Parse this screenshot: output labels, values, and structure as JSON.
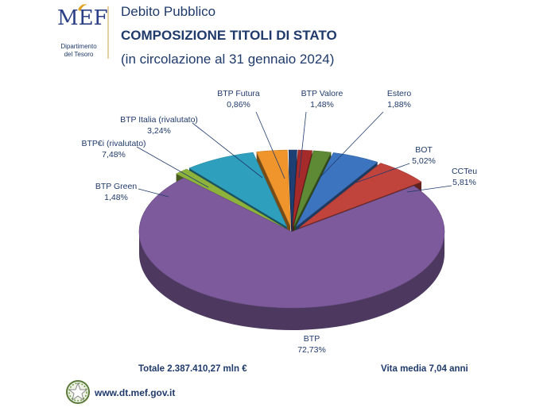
{
  "header": {
    "logo_text": "MEF",
    "dept_line1": "Dipartimento",
    "dept_line2": "del Tesoro",
    "subtitle": "Debito Pubblico",
    "title": "COMPOSIZIONE TITOLI DI STATO",
    "date_note": "(in circolazione al 31 gennaio 2024)"
  },
  "chart_data": {
    "type": "pie",
    "title": "COMPOSIZIONE TITOLI DI STATO",
    "subtitle": "(in circolazione al 31 gennaio 2024)",
    "slices": [
      {
        "label": "BTP",
        "value_text": "72,73%",
        "value": 72.73,
        "color": "#7c5a9b"
      },
      {
        "label": "BTP Green",
        "value_text": "1,48%",
        "value": 1.48,
        "color": "#8db33c"
      },
      {
        "label": "BTP€i (rivalutato)",
        "value_text": "7,48%",
        "value": 7.48,
        "color": "#2e9fbd"
      },
      {
        "label": "BTP Italia (rivalutato)",
        "value_text": "3,24%",
        "value": 3.24,
        "color": "#f0952b"
      },
      {
        "label": "BTP Futura",
        "value_text": "0,86%",
        "value": 0.86,
        "color": "#1d3f73"
      },
      {
        "label": "BTP Valore",
        "value_text": "1,48%",
        "value": 1.48,
        "color": "#a52a2a"
      },
      {
        "label": "Estero",
        "value_text": "1,88%",
        "value": 1.88,
        "color": "#5e8a35"
      },
      {
        "label": "BOT",
        "value_text": "5,02%",
        "value": 5.02,
        "color": "#3d74c0"
      },
      {
        "label": "CCTeu",
        "value_text": "5,81%",
        "value": 5.81,
        "color": "#c0433c"
      }
    ],
    "style": "3d-exploded-pie"
  },
  "footer": {
    "total": "Totale 2.387.410,27 mln €",
    "avg_life": "Vita media 7,04 anni",
    "website": "www.dt.mef.gov.it"
  }
}
